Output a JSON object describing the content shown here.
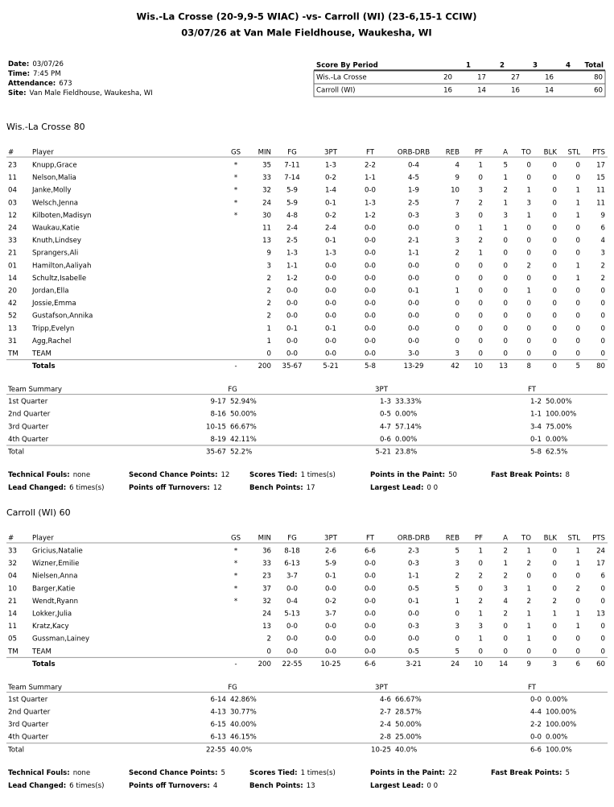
{
  "header": {
    "title": "Wis.-La Crosse (20-9,9-5 WIAC) -vs- Carroll (WI) (23-6,15-1 CCIW)",
    "subtitle": "03/07/26 at Van Male Fieldhouse, Waukesha, WI"
  },
  "info": [
    {
      "label": "Date:",
      "value": "03/07/26"
    },
    {
      "label": "Time:",
      "value": "7:45 PM"
    },
    {
      "label": "Attendance:",
      "value": "673"
    },
    {
      "label": "Site:",
      "value": "Van Male Fieldhouse, Waukesha, WI"
    }
  ],
  "score_by_period": {
    "columns": [
      "Score By Period",
      "1",
      "2",
      "3",
      "4",
      "Total"
    ],
    "rows": [
      [
        "Wis.-La Crosse",
        "20",
        "17",
        "27",
        "16",
        "80"
      ],
      [
        "Carroll (WI)",
        "16",
        "14",
        "16",
        "14",
        "60"
      ]
    ]
  },
  "teams": [
    {
      "title": "Wis.-La Crosse 80",
      "columns": [
        "#",
        "Player",
        "GS",
        "MIN",
        "FG",
        "3PT",
        "FT",
        "ORB-DRB",
        "REB",
        "PF",
        "A",
        "TO",
        "BLK",
        "STL",
        "PTS"
      ],
      "players": [
        [
          "23",
          "Knupp,Grace",
          "*",
          "35",
          "7-11",
          "1-3",
          "2-2",
          "0-4",
          "4",
          "1",
          "5",
          "0",
          "0",
          "0",
          "17"
        ],
        [
          "11",
          "Nelson,Malia",
          "*",
          "33",
          "7-14",
          "0-2",
          "1-1",
          "4-5",
          "9",
          "0",
          "1",
          "0",
          "0",
          "0",
          "15"
        ],
        [
          "04",
          "Janke,Molly",
          "*",
          "32",
          "5-9",
          "1-4",
          "0-0",
          "1-9",
          "10",
          "3",
          "2",
          "1",
          "0",
          "1",
          "11"
        ],
        [
          "03",
          "Welsch,Jenna",
          "*",
          "24",
          "5-9",
          "0-1",
          "1-3",
          "2-5",
          "7",
          "2",
          "1",
          "3",
          "0",
          "1",
          "11"
        ],
        [
          "12",
          "Kilboten,Madisyn",
          "*",
          "30",
          "4-8",
          "0-2",
          "1-2",
          "0-3",
          "3",
          "0",
          "3",
          "1",
          "0",
          "1",
          "9"
        ],
        [
          "24",
          "Waukau,Katie",
          null,
          "11",
          "2-4",
          "2-4",
          "0-0",
          "0-0",
          "0",
          "1",
          "1",
          "0",
          "0",
          "0",
          "6"
        ],
        [
          "33",
          "Knuth,Lindsey",
          null,
          "13",
          "2-5",
          "0-1",
          "0-0",
          "2-1",
          "3",
          "2",
          "0",
          "0",
          "0",
          "0",
          "4"
        ],
        [
          "21",
          "Sprangers,Ali",
          null,
          "9",
          "1-3",
          "1-3",
          "0-0",
          "1-1",
          "2",
          "1",
          "0",
          "0",
          "0",
          "0",
          "3"
        ],
        [
          "01",
          "Hamilton,Aaliyah",
          null,
          "3",
          "1-1",
          "0-0",
          "0-0",
          "0-0",
          "0",
          "0",
          "0",
          "2",
          "0",
          "1",
          "2"
        ],
        [
          "14",
          "Schultz,Isabelle",
          null,
          "2",
          "1-2",
          "0-0",
          "0-0",
          "0-0",
          "0",
          "0",
          "0",
          "0",
          "0",
          "1",
          "2"
        ],
        [
          "20",
          "Jordan,Ella",
          null,
          "2",
          "0-0",
          "0-0",
          "0-0",
          "0-1",
          "1",
          "0",
          "0",
          "1",
          "0",
          "0",
          "0"
        ],
        [
          "42",
          "Jossie,Emma",
          null,
          "2",
          "0-0",
          "0-0",
          "0-0",
          "0-0",
          "0",
          "0",
          "0",
          "0",
          "0",
          "0",
          "0"
        ],
        [
          "52",
          "Gustafson,Annika",
          null,
          "2",
          "0-0",
          "0-0",
          "0-0",
          "0-0",
          "0",
          "0",
          "0",
          "0",
          "0",
          "0",
          "0"
        ],
        [
          "13",
          "Tripp,Evelyn",
          null,
          "1",
          "0-1",
          "0-1",
          "0-0",
          "0-0",
          "0",
          "0",
          "0",
          "0",
          "0",
          "0",
          "0"
        ],
        [
          "31",
          "Agg,Rachel",
          null,
          "1",
          "0-0",
          "0-0",
          "0-0",
          "0-0",
          "0",
          "0",
          "0",
          "0",
          "0",
          "0",
          "0"
        ],
        [
          "TM",
          "TEAM",
          null,
          "0",
          "0-0",
          "0-0",
          "0-0",
          "3-0",
          "3",
          "0",
          "0",
          "0",
          "0",
          "0",
          "0"
        ]
      ],
      "totals": [
        null,
        "Totals",
        "-",
        "200",
        "35-67",
        "5-21",
        "5-8",
        "13-29",
        "42",
        "10",
        "13",
        "8",
        "0",
        "5",
        "80"
      ],
      "summary": {
        "columns": [
          "Team Summary",
          "FG",
          "3PT",
          "FT"
        ],
        "rows": [
          [
            "1st Quarter",
            "9-17",
            "52.94%",
            "1-3",
            "33.33%",
            "1-2",
            "50.00%"
          ],
          [
            "2nd Quarter",
            "8-16",
            "50.00%",
            "0-5",
            "0.00%",
            "1-1",
            "100.00%"
          ],
          [
            "3rd Quarter",
            "10-15",
            "66.67%",
            "4-7",
            "57.14%",
            "3-4",
            "75.00%"
          ],
          [
            "4th Quarter",
            "8-19",
            "42.11%",
            "0-6",
            "0.00%",
            "0-1",
            "0.00%"
          ]
        ],
        "total": [
          "Total",
          "35-67",
          "52.2%",
          "5-21",
          "23.8%",
          "5-8",
          "62.5%"
        ]
      },
      "stats": [
        {
          "label": "Technical Fouls:",
          "value": "none"
        },
        {
          "label": "Second Chance Points:",
          "value": "12"
        },
        {
          "label": "Scores Tied:",
          "value": "1 times(s)"
        },
        {
          "label": "Points in the Paint:",
          "value": "50"
        },
        {
          "label": "Fast Break Points:",
          "value": "8"
        },
        {
          "label": "Lead Changed:",
          "value": "6 times(s)"
        },
        {
          "label": "Points off Turnovers:",
          "value": "12"
        },
        {
          "label": "Bench Points:",
          "value": "17"
        },
        {
          "label": "Largest Lead:",
          "value": "0 0"
        }
      ]
    },
    {
      "title": "Carroll (WI) 60",
      "columns": [
        "#",
        "Player",
        "GS",
        "MIN",
        "FG",
        "3PT",
        "FT",
        "ORB-DRB",
        "REB",
        "PF",
        "A",
        "TO",
        "BLK",
        "STL",
        "PTS"
      ],
      "players": [
        [
          "33",
          "Gricius,Natalie",
          "*",
          "36",
          "8-18",
          "2-6",
          "6-6",
          "2-3",
          "5",
          "1",
          "2",
          "1",
          "0",
          "1",
          "24"
        ],
        [
          "32",
          "Wizner,Emilie",
          "*",
          "33",
          "6-13",
          "5-9",
          "0-0",
          "0-3",
          "3",
          "0",
          "1",
          "2",
          "0",
          "1",
          "17"
        ],
        [
          "04",
          "Nielsen,Anna",
          "*",
          "23",
          "3-7",
          "0-1",
          "0-0",
          "1-1",
          "2",
          "2",
          "2",
          "0",
          "0",
          "0",
          "6"
        ],
        [
          "10",
          "Barger,Katie",
          "*",
          "37",
          "0-0",
          "0-0",
          "0-0",
          "0-5",
          "5",
          "0",
          "3",
          "1",
          "0",
          "2",
          "0"
        ],
        [
          "21",
          "Wendt,Ryann",
          "*",
          "32",
          "0-4",
          "0-2",
          "0-0",
          "0-1",
          "1",
          "2",
          "4",
          "2",
          "2",
          "0",
          "0"
        ],
        [
          "14",
          "Lokker,Julia",
          null,
          "24",
          "5-13",
          "3-7",
          "0-0",
          "0-0",
          "0",
          "1",
          "2",
          "1",
          "1",
          "1",
          "13"
        ],
        [
          "11",
          "Kratz,Kacy",
          null,
          "13",
          "0-0",
          "0-0",
          "0-0",
          "0-3",
          "3",
          "3",
          "0",
          "1",
          "0",
          "1",
          "0"
        ],
        [
          "05",
          "Gussman,Lainey",
          null,
          "2",
          "0-0",
          "0-0",
          "0-0",
          "0-0",
          "0",
          "1",
          "0",
          "1",
          "0",
          "0",
          "0"
        ],
        [
          "TM",
          "TEAM",
          null,
          "0",
          "0-0",
          "0-0",
          "0-0",
          "0-5",
          "5",
          "0",
          "0",
          "0",
          "0",
          "0",
          "0"
        ]
      ],
      "totals": [
        null,
        "Totals",
        "-",
        "200",
        "22-55",
        "10-25",
        "6-6",
        "3-21",
        "24",
        "10",
        "14",
        "9",
        "3",
        "6",
        "60"
      ],
      "summary": {
        "columns": [
          "Team Summary",
          "FG",
          "3PT",
          "FT"
        ],
        "rows": [
          [
            "1st Quarter",
            "6-14",
            "42.86%",
            "4-6",
            "66.67%",
            "0-0",
            "0.00%"
          ],
          [
            "2nd Quarter",
            "4-13",
            "30.77%",
            "2-7",
            "28.57%",
            "4-4",
            "100.00%"
          ],
          [
            "3rd Quarter",
            "6-15",
            "40.00%",
            "2-4",
            "50.00%",
            "2-2",
            "100.00%"
          ],
          [
            "4th Quarter",
            "6-13",
            "46.15%",
            "2-8",
            "25.00%",
            "0-0",
            "0.00%"
          ]
        ],
        "total": [
          "Total",
          "22-55",
          "40.0%",
          "10-25",
          "40.0%",
          "6-6",
          "100.0%"
        ]
      },
      "stats": [
        {
          "label": "Technical Fouls:",
          "value": "none"
        },
        {
          "label": "Second Chance Points:",
          "value": "5"
        },
        {
          "label": "Scores Tied:",
          "value": "1 times(s)"
        },
        {
          "label": "Points in the Paint:",
          "value": "22"
        },
        {
          "label": "Fast Break Points:",
          "value": "5"
        },
        {
          "label": "Lead Changed:",
          "value": "6 times(s)"
        },
        {
          "label": "Points off Turnovers:",
          "value": "4"
        },
        {
          "label": "Bench Points:",
          "value": "13"
        },
        {
          "label": "Largest Lead:",
          "value": "0 0"
        }
      ]
    }
  ]
}
